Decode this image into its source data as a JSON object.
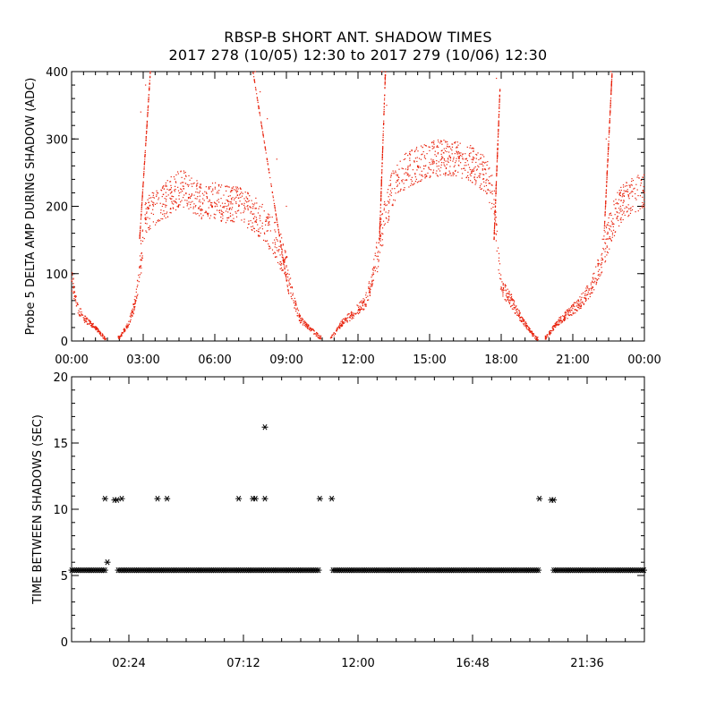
{
  "title": "RBSP-B SHORT ANT. SHADOW TIMES",
  "subtitle": "2017 278 (10/05) 12:30 to 2017 279 (10/06) 12:30",
  "colors": {
    "top_points": "#e8200a",
    "bottom_points": "#000000",
    "axes": "#000000"
  },
  "chart_data": [
    {
      "type": "scatter",
      "ylabel": "Probe 5 DELTA AMP DURING SHADOW (ADC)",
      "xlabel": "",
      "xlim": [
        0,
        24
      ],
      "ylim": [
        0,
        400
      ],
      "xtick_labels": [
        "00:00",
        "03:00",
        "06:00",
        "09:00",
        "12:00",
        "15:00",
        "18:00",
        "21:00",
        "00:00"
      ],
      "ytick_labels": [
        "0",
        "100",
        "200",
        "300",
        "400"
      ],
      "series": [
        {
          "color": "#e8200a",
          "marker": "dot",
          "points": [
            [
              0.0,
              90
            ],
            [
              0.3,
              45
            ],
            [
              0.6,
              30
            ],
            [
              0.9,
              22
            ],
            [
              1.2,
              12
            ],
            [
              1.4,
              2
            ],
            [
              2.0,
              5
            ],
            [
              2.4,
              25
            ],
            [
              2.7,
              60
            ],
            [
              2.9,
              120
            ],
            [
              3.1,
              180
            ],
            [
              3.4,
              195
            ],
            [
              3.8,
              200
            ],
            [
              4.2,
              215
            ],
            [
              4.6,
              225
            ],
            [
              5.0,
              215
            ],
            [
              5.5,
              205
            ],
            [
              6.0,
              205
            ],
            [
              6.5,
              200
            ],
            [
              7.0,
              200
            ],
            [
              7.5,
              190
            ],
            [
              8.0,
              175
            ],
            [
              8.5,
              150
            ],
            [
              9.0,
              110
            ],
            [
              9.3,
              60
            ],
            [
              9.6,
              30
            ],
            [
              10.0,
              18
            ],
            [
              10.4,
              5
            ],
            [
              10.9,
              5
            ],
            [
              11.3,
              25
            ],
            [
              11.8,
              40
            ],
            [
              12.3,
              55
            ],
            [
              12.6,
              90
            ],
            [
              13.0,
              160
            ],
            [
              13.4,
              220
            ],
            [
              14.0,
              250
            ],
            [
              14.5,
              260
            ],
            [
              15.0,
              265
            ],
            [
              15.5,
              270
            ],
            [
              16.0,
              270
            ],
            [
              16.5,
              265
            ],
            [
              17.0,
              255
            ],
            [
              17.4,
              240
            ],
            [
              17.7,
              210
            ],
            [
              18.0,
              80
            ],
            [
              18.4,
              60
            ],
            [
              18.8,
              35
            ],
            [
              19.2,
              15
            ],
            [
              19.5,
              2
            ],
            [
              19.9,
              5
            ],
            [
              20.3,
              25
            ],
            [
              20.8,
              40
            ],
            [
              21.3,
              55
            ],
            [
              21.8,
              80
            ],
            [
              22.2,
              120
            ],
            [
              22.6,
              170
            ],
            [
              23.0,
              200
            ],
            [
              23.5,
              215
            ],
            [
              24.0,
              220
            ],
            [
              2.9,
              340
            ],
            [
              3.1,
              380
            ],
            [
              3.3,
              400
            ],
            [
              7.7,
              400
            ],
            [
              7.9,
              370
            ],
            [
              8.2,
              330
            ],
            [
              8.6,
              270
            ],
            [
              9.0,
              200
            ],
            [
              13.0,
              400
            ],
            [
              13.2,
              350
            ],
            [
              17.8,
              390
            ],
            [
              17.9,
              320
            ],
            [
              22.4,
              300
            ],
            [
              22.6,
              400
            ]
          ]
        }
      ]
    },
    {
      "type": "scatter",
      "ylabel": "TIME BETWEEN SHADOWS (SEC)",
      "xlabel": "",
      "xlim": [
        0,
        24
      ],
      "ylim": [
        0,
        20
      ],
      "xtick_labels": [
        "02:24",
        "07:12",
        "12:00",
        "16:48",
        "21:36"
      ],
      "ytick_labels": [
        "0",
        "5",
        "10",
        "15",
        "20"
      ],
      "series": [
        {
          "color": "#000000",
          "marker": "asterisk",
          "points": [
            [
              1.4,
              10.8
            ],
            [
              1.5,
              6.0
            ],
            [
              1.8,
              10.7
            ],
            [
              1.9,
              10.7
            ],
            [
              2.1,
              10.8
            ],
            [
              3.6,
              10.8
            ],
            [
              4.0,
              10.8
            ],
            [
              7.0,
              10.8
            ],
            [
              7.6,
              10.8
            ],
            [
              7.7,
              10.8
            ],
            [
              8.1,
              10.8
            ],
            [
              8.1,
              16.2
            ],
            [
              10.4,
              10.8
            ],
            [
              10.9,
              10.8
            ],
            [
              19.6,
              10.8
            ],
            [
              20.1,
              10.7
            ],
            [
              20.2,
              10.7
            ]
          ]
        }
      ],
      "baseline": {
        "value": 5.4,
        "x_start": 0.0,
        "x_end": 24.0
      }
    }
  ]
}
